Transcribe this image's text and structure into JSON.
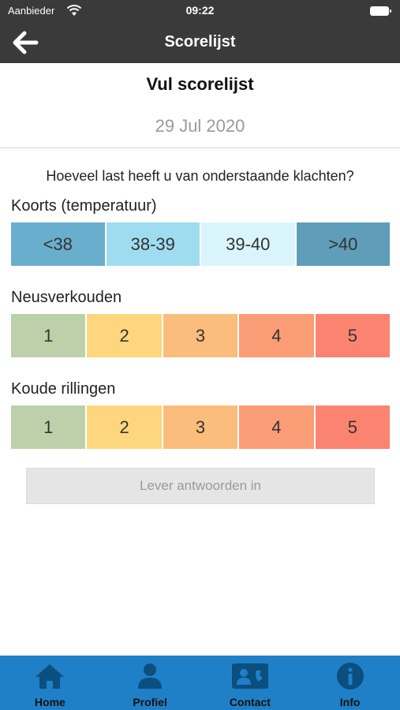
{
  "status_bar": {
    "carrier": "Aanbieder",
    "time": "09:22"
  },
  "nav": {
    "title": "Scorelijst"
  },
  "header": {
    "heading": "Vul scorelijst",
    "date": "29 Jul 2020"
  },
  "question": "Hoeveel last heeft u van onderstaande klachten?",
  "sections": [
    {
      "label": "Koorts (temperatuur)",
      "options": [
        {
          "label": "<38",
          "color": "#6aaecd"
        },
        {
          "label": "38-39",
          "color": "#9fdcf0"
        },
        {
          "label": "39-40",
          "color": "#d9f5fb"
        },
        {
          "label": ">40",
          "color": "#5f9db8"
        }
      ]
    },
    {
      "label": "Neusverkouden",
      "options": [
        {
          "label": "1",
          "color": "#bcd1a9"
        },
        {
          "label": "2",
          "color": "#fed67d"
        },
        {
          "label": "3",
          "color": "#fbbd7b"
        },
        {
          "label": "4",
          "color": "#fa9d77"
        },
        {
          "label": "5",
          "color": "#fa8470"
        }
      ]
    },
    {
      "label": "Koude rillingen",
      "options": [
        {
          "label": "1",
          "color": "#bcd1a9"
        },
        {
          "label": "2",
          "color": "#fed67d"
        },
        {
          "label": "3",
          "color": "#fbbd7b"
        },
        {
          "label": "4",
          "color": "#fa9d77"
        },
        {
          "label": "5",
          "color": "#fa8470"
        }
      ]
    }
  ],
  "submit_label": "Lever antwoorden in",
  "tabs": [
    {
      "label": "Home",
      "icon": "home-icon"
    },
    {
      "label": "Profiel",
      "icon": "profile-icon"
    },
    {
      "label": "Contact",
      "icon": "contact-card-icon"
    },
    {
      "label": "Info",
      "icon": "info-icon"
    }
  ],
  "colors": {
    "bar": "#3a3a3a",
    "tab_bar": "#1f7fc7",
    "tab_icon": "#0b4f7f"
  }
}
